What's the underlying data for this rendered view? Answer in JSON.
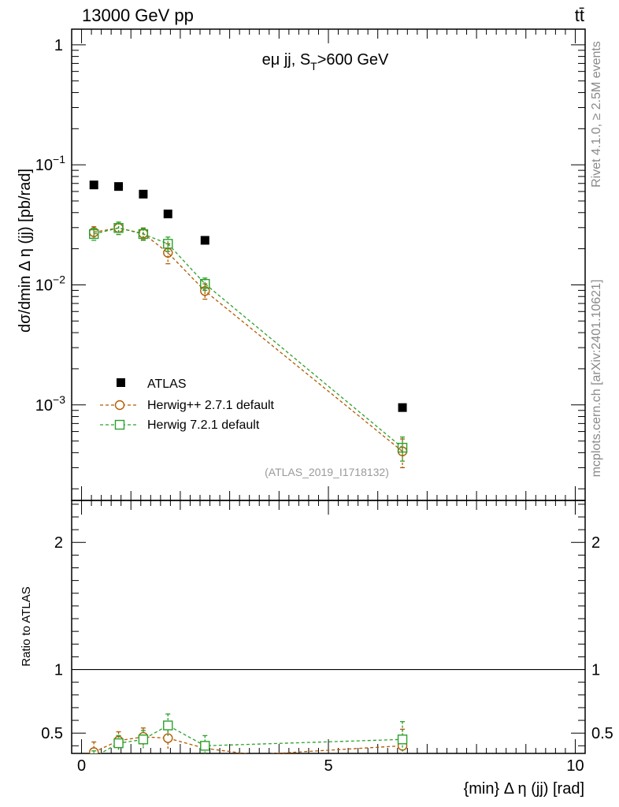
{
  "header": {
    "left": "13000 GeV pp",
    "right": "tt̄"
  },
  "side": {
    "rivet": "Rivet 4.1.0, ≥ 2.5M events",
    "mcplots": "mcplots.cern.ch [arXiv:2401.10621]"
  },
  "chart_data": [
    {
      "type": "scatter",
      "panel": "main",
      "title_parts": {
        "pre": "eμ jj, S",
        "sub": "T",
        "post": ">600 GeV"
      },
      "ylabel": "dσ/dmin Δ η (jj) [pb/rad]",
      "xlabel": "",
      "yscale": "log",
      "xlim": [
        -0.2,
        10.2
      ],
      "ylim": [
        0.00016,
        1.35
      ],
      "ytick_labels": [
        {
          "value": 1,
          "base": "1",
          "exp": ""
        },
        {
          "value": 0.1,
          "base": "10",
          "exp": "−1"
        },
        {
          "value": 0.01,
          "base": "10",
          "exp": "−2"
        },
        {
          "value": 0.001,
          "base": "10",
          "exp": "−3"
        }
      ],
      "watermark": "(ATLAS_2019_I1718132)",
      "legend": {
        "placement": "lower-left",
        "entries": [
          "ATLAS",
          "Herwig++ 2.7.1 default",
          "Herwig 7.2.1 default"
        ]
      },
      "series": [
        {
          "name": "ATLAS",
          "color": "#000000",
          "marker": "filled-square",
          "x": [
            0.25,
            0.75,
            1.25,
            1.75,
            2.5,
            6.5
          ],
          "y": [
            0.068,
            0.066,
            0.057,
            0.039,
            0.0235,
            0.00095
          ]
        },
        {
          "name": "Herwig++ 2.7.1 default",
          "color": "#b35a00",
          "marker": "open-circle",
          "x": [
            0.25,
            0.75,
            1.25,
            1.75,
            2.5,
            6.5
          ],
          "y": [
            0.0275,
            0.0298,
            0.0268,
            0.0185,
            0.0089,
            0.00041
          ],
          "err": [
            0.003,
            0.0035,
            0.003,
            0.0035,
            0.0013,
            0.00011
          ]
        },
        {
          "name": "Herwig 7.2.1 default",
          "color": "#2ca02c",
          "marker": "open-square",
          "x": [
            0.25,
            0.75,
            1.25,
            1.75,
            2.5,
            6.5
          ],
          "y": [
            0.0265,
            0.0298,
            0.0265,
            0.022,
            0.0102,
            0.00044
          ],
          "err": [
            0.003,
            0.0035,
            0.003,
            0.003,
            0.0012,
            0.0001
          ]
        }
      ]
    },
    {
      "type": "scatter",
      "panel": "ratio",
      "ylabel": "Ratio to ATLAS",
      "xlabel": "{min} Δ η (jj) [rad]",
      "yscale": "linear",
      "xlim": [
        -0.2,
        10.2
      ],
      "ylim": [
        0.34,
        2.33
      ],
      "xtick_labels": [
        "0",
        "5",
        "10"
      ],
      "ytick_labels": [
        "0.5",
        "1",
        "2"
      ],
      "reference_line": 1,
      "series": [
        {
          "name": "Herwig++ 2.7.1 default",
          "color": "#b35a00",
          "marker": "open-circle",
          "x": [
            0.25,
            0.75,
            1.25,
            1.75,
            2.5,
            3.5,
            6.5
          ],
          "y": [
            0.35,
            0.44,
            0.47,
            0.46,
            0.38,
            0.33,
            0.4
          ],
          "err": [
            0.08,
            0.07,
            0.07,
            0.09,
            0.0,
            0.0,
            0.13
          ],
          "marker_drawn": [
            true,
            true,
            true,
            true,
            false,
            false,
            true
          ]
        },
        {
          "name": "Herwig 7.2.1 default",
          "color": "#2ca02c",
          "marker": "open-square",
          "x": [
            0.25,
            0.75,
            1.25,
            1.75,
            2.5,
            6.5
          ],
          "y": [
            0.31,
            0.42,
            0.45,
            0.56,
            0.4,
            0.45
          ],
          "err": [
            0.05,
            0.06,
            0.07,
            0.09,
            0.08,
            0.14
          ],
          "marker_drawn": [
            false,
            true,
            true,
            true,
            true,
            true
          ]
        }
      ]
    }
  ]
}
